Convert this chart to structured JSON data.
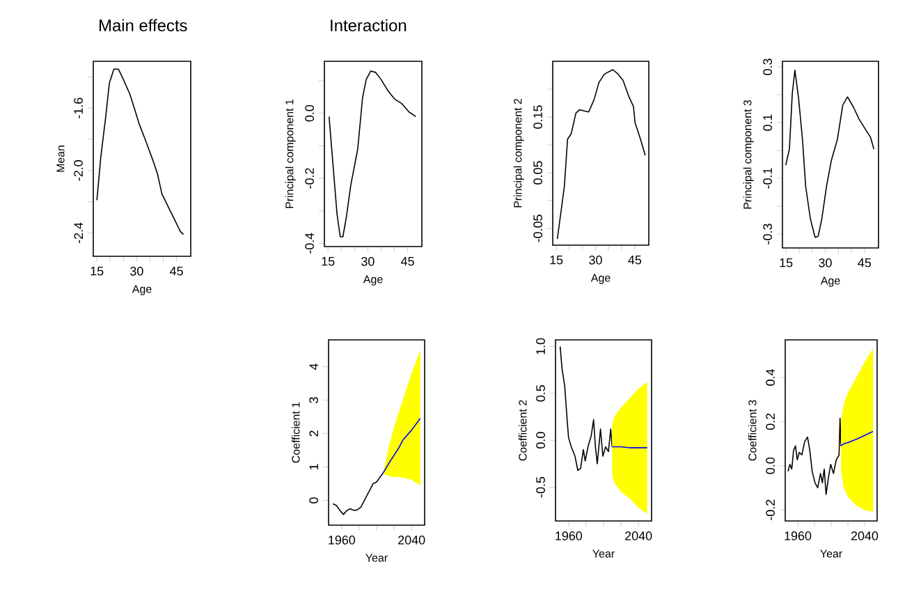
{
  "chart_data": [
    {
      "type": "line",
      "title": "Main effects",
      "xlabel": "Age",
      "ylabel": "Mean",
      "xlim": [
        13.64,
        50.36
      ],
      "xticks": [
        15,
        {
          "value": 20,
          "label": null
        },
        {
          "value": 25,
          "label": null
        },
        30,
        {
          "value": 35,
          "label": null
        },
        {
          "value": 40,
          "label": null
        },
        45
      ],
      "ylim": [
        -2.55,
        -1.3
      ],
      "yticks": [
        -2.4,
        {
          "value": -2.2,
          "label": null
        },
        {
          "value": -2,
          "label": "-2.0"
        },
        {
          "value": -1.8,
          "label": null
        },
        -1.6,
        {
          "value": -1.4,
          "label": null
        }
      ],
      "series": [
        {
          "color": "#000000",
          "x": [
            15,
            16.5,
            18.3,
            19.7,
            21.4,
            23.1,
            24.8,
            27.4,
            29.1,
            30.9,
            33.4,
            36,
            37.8,
            39.5,
            42.1,
            44.7,
            46.4,
            47.6
          ],
          "values": [
            -2.19,
            -1.91,
            -1.66,
            -1.44,
            -1.35,
            -1.35,
            -1.41,
            -1.51,
            -1.6,
            -1.7,
            -1.81,
            -1.93,
            -2.02,
            -2.15,
            -2.24,
            -2.33,
            -2.39,
            -2.41
          ]
        }
      ]
    },
    {
      "type": "line",
      "title": "Interaction",
      "xlabel": "Age",
      "ylabel": "Principal component 1",
      "xlim": [
        13.64,
        50.36
      ],
      "xticks": [
        15,
        {
          "value": 20,
          "label": null
        },
        {
          "value": 25,
          "label": null
        },
        30,
        {
          "value": 35,
          "label": null
        },
        {
          "value": 40,
          "label": null
        },
        45
      ],
      "ylim": [
        -0.41,
        0.16
      ],
      "yticks": [
        -0.4,
        {
          "value": -0.3,
          "label": null
        },
        -0.2,
        {
          "value": -0.1,
          "label": null
        },
        {
          "value": 0,
          "label": "0.0"
        },
        {
          "value": 0.1,
          "label": null
        }
      ],
      "series": [
        {
          "color": "#000000",
          "x": [
            15.4,
            17.1,
            18.4,
            19.6,
            20.6,
            21.9,
            23.6,
            26.2,
            28,
            29.4,
            31.1,
            32.9,
            35,
            37.6,
            40.2,
            42.8,
            45.5,
            48.1
          ],
          "values": [
            -0.01,
            -0.18,
            -0.31,
            -0.38,
            -0.38,
            -0.32,
            -0.22,
            -0.11,
            0.047,
            0.104,
            0.13,
            0.126,
            0.104,
            0.069,
            0.043,
            0.03,
            0.004,
            -0.01
          ]
        }
      ]
    },
    {
      "type": "line",
      "xlabel": "Age",
      "ylabel": "Principal component 2",
      "xlim": [
        13.64,
        50.36
      ],
      "xticks": [
        15,
        {
          "value": 20,
          "label": null
        },
        {
          "value": 25,
          "label": null
        },
        30,
        {
          "value": 35,
          "label": null
        },
        {
          "value": 40,
          "label": null
        },
        45
      ],
      "ylim": [
        -0.08,
        0.25
      ],
      "yticks": [
        -0.05,
        {
          "value": 0.0,
          "label": null
        },
        0.05,
        {
          "value": 0.1,
          "label": null
        },
        0.15,
        {
          "value": 0.2,
          "label": null
        }
      ],
      "series": [
        {
          "color": "#000000",
          "x": [
            15.4,
            16.8,
            18.1,
            19.3,
            20.7,
            22.5,
            23.9,
            25.6,
            27.4,
            29.5,
            31.3,
            33.4,
            36.6,
            38.4,
            40.5,
            42.8,
            44.5,
            45.1,
            47.2,
            49
          ],
          "values": [
            -0.069,
            -0.02,
            0.026,
            0.11,
            0.12,
            0.157,
            0.163,
            0.161,
            0.159,
            0.182,
            0.212,
            0.227,
            0.235,
            0.228,
            0.216,
            0.186,
            0.169,
            0.14,
            0.11,
            0.081
          ]
        }
      ]
    },
    {
      "type": "line",
      "xlabel": "Age",
      "ylabel": "Principal component 3",
      "xlim": [
        13.64,
        50.36
      ],
      "xticks": [
        15,
        {
          "value": 20,
          "label": null
        },
        {
          "value": 25,
          "label": null
        },
        30,
        {
          "value": 35,
          "label": null
        },
        {
          "value": 40,
          "label": null
        },
        45
      ],
      "ylim": [
        -0.35,
        0.32
      ],
      "yticks": [
        -0.3,
        {
          "value": -0.2,
          "label": null
        },
        -0.1,
        {
          "value": 0.0,
          "label": null
        },
        0.1,
        {
          "value": 0.2,
          "label": null
        },
        0.3
      ],
      "series": [
        {
          "color": "#000000",
          "x": [
            14.9,
            16.3,
            17.4,
            18.4,
            19.8,
            21.3,
            22.5,
            24.3,
            26.1,
            27.3,
            28.7,
            30.5,
            32.3,
            34.6,
            36.7,
            38.5,
            40.8,
            42.9,
            45.6,
            47.3,
            48.6
          ],
          "values": [
            -0.053,
            0.005,
            0.205,
            0.288,
            0.188,
            0.038,
            -0.128,
            -0.245,
            -0.312,
            -0.308,
            -0.245,
            -0.128,
            -0.037,
            0.038,
            0.163,
            0.192,
            0.155,
            0.113,
            0.072,
            0.047,
            0.005
          ]
        }
      ]
    },
    {
      "type": "line",
      "xlabel": "Year",
      "ylabel": "Coefficient 1",
      "xlim": [
        1945,
        2055
      ],
      "xticks": [
        1960,
        {
          "value": 1980,
          "label": null
        },
        {
          "value": 2000,
          "label": null
        },
        {
          "value": 2020,
          "label": null
        },
        2040
      ],
      "ylim": [
        -0.74,
        4.8
      ],
      "yticks": [
        0,
        1,
        2,
        3,
        4
      ],
      "series": [
        {
          "color": "#000000",
          "x": [
            1950,
            1954,
            1958,
            1962,
            1966,
            1970,
            1974,
            1978,
            1982,
            1985,
            1988,
            1992,
            1996,
            2000,
            2004,
            2007
          ],
          "values": [
            -0.1,
            -0.15,
            -0.3,
            -0.42,
            -0.3,
            -0.25,
            -0.3,
            -0.28,
            -0.2,
            -0.05,
            0.1,
            0.3,
            0.5,
            0.55,
            0.7,
            0.8
          ]
        },
        {
          "color": "#0000ff",
          "x": [
            2007,
            2015,
            2020,
            2025,
            2030,
            2040,
            2050
          ],
          "values": [
            0.8,
            1.15,
            1.35,
            1.55,
            1.8,
            2.1,
            2.45
          ],
          "lower": [
            0.8,
            0.72,
            0.71,
            0.7,
            0.68,
            0.62,
            0.45
          ],
          "upper": [
            0.8,
            1.7,
            2.2,
            2.6,
            3.0,
            3.8,
            4.5
          ]
        }
      ]
    },
    {
      "type": "line",
      "xlabel": "Year",
      "ylabel": "Coefficient 2",
      "xlim": [
        1945,
        2055
      ],
      "xticks": [
        1960,
        {
          "value": 1980,
          "label": null
        },
        {
          "value": 2000,
          "label": null
        },
        {
          "value": 2020,
          "label": null
        },
        2040
      ],
      "ylim": [
        -0.86,
        1.07
      ],
      "yticks": [
        -0.5,
        {
          "value": 0,
          "label": "0.0"
        },
        0.5,
        {
          "value": 1,
          "label": "1.0"
        }
      ],
      "series": [
        {
          "color": "#000000",
          "x": [
            1950.3,
            1952.4,
            1955.6,
            1958.3,
            1959.9,
            1963,
            1967.3,
            1970.5,
            1973.7,
            1976.9,
            1979,
            1982.2,
            1985.9,
            1988.6,
            1990.7,
            1992.8,
            1996.5,
            1999.2,
            2002.4,
            2005.6,
            2008.2,
            2009.8
          ],
          "values": [
            1.0,
            0.77,
            0.57,
            0.22,
            0.03,
            -0.07,
            -0.17,
            -0.32,
            -0.3,
            -0.1,
            -0.22,
            -0.07,
            0.05,
            0.22,
            -0.07,
            -0.25,
            0.12,
            -0.17,
            -0.07,
            -0.12,
            0.12,
            -0.07
          ]
        },
        {
          "color": "#0000ff",
          "x": [
            2009.8,
            2012,
            2020,
            2030,
            2040,
            2050
          ],
          "values": [
            -0.07,
            -0.07,
            -0.07,
            -0.08,
            -0.08,
            -0.08
          ],
          "lower": [
            -0.35,
            -0.45,
            -0.55,
            -0.62,
            -0.72,
            -0.78
          ],
          "upper": [
            0.15,
            0.25,
            0.35,
            0.45,
            0.55,
            0.62
          ]
        }
      ]
    },
    {
      "type": "line",
      "xlabel": "Year",
      "ylabel": "Coefficient 3",
      "xlim": [
        1945,
        2055
      ],
      "xticks": [
        1960,
        {
          "value": 1980,
          "label": null
        },
        {
          "value": 2000,
          "label": null
        },
        {
          "value": 2020,
          "label": null
        },
        2040
      ],
      "ylim": [
        -0.25,
        0.57
      ],
      "yticks": [
        -0.2,
        {
          "value": 0,
          "label": "0.0"
        },
        0.2,
        0.4
      ],
      "series": [
        {
          "color": "#000000",
          "x": [
            1948.3,
            1950.6,
            1952.8,
            1955,
            1957.2,
            1959.4,
            1961.7,
            1965,
            1968.3,
            1971.7,
            1974.4,
            1977.2,
            1980.6,
            1983.9,
            1987.2,
            1989.4,
            1991.7,
            1993.9,
            1996.7,
            1999.4,
            2002.8,
            2006.1,
            2009.4,
            2010.6,
            2011.7
          ],
          "values": [
            -0.025,
            0.006,
            -0.015,
            0.07,
            0.09,
            0.027,
            0.06,
            0.05,
            0.11,
            0.13,
            0.07,
            -0.025,
            -0.077,
            -0.1,
            -0.035,
            -0.077,
            -0.015,
            -0.13,
            -0.055,
            0.006,
            -0.035,
            0.027,
            0.048,
            0.215,
            0.09
          ]
        },
        {
          "color": "#0000ff",
          "x": [
            2011.7,
            2015,
            2020,
            2030,
            2040,
            2050
          ],
          "values": [
            0.09,
            0.1,
            0.105,
            0.12,
            0.137,
            0.155
          ],
          "lower": [
            -0.02,
            -0.1,
            -0.14,
            -0.18,
            -0.2,
            -0.21
          ],
          "upper": [
            0.2,
            0.28,
            0.33,
            0.4,
            0.47,
            0.53
          ]
        }
      ]
    }
  ]
}
